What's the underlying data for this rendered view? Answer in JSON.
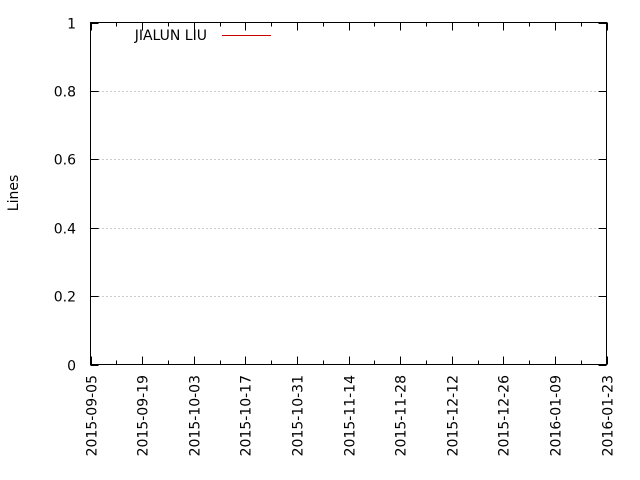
{
  "chart_data": {
    "type": "line",
    "title": "",
    "xlabel": "",
    "ylabel": "Lines",
    "x_type": "date",
    "xlim": [
      "2015-09-05",
      "2016-01-23"
    ],
    "ylim": [
      0,
      1
    ],
    "x_ticks": [
      "2015-09-05",
      "2015-09-19",
      "2015-10-03",
      "2015-10-17",
      "2015-10-31",
      "2015-11-14",
      "2015-11-28",
      "2015-12-12",
      "2015-12-26",
      "2016-01-09",
      "2016-01-23"
    ],
    "y_ticks": [
      0,
      0.2,
      0.4,
      0.6,
      0.8,
      1
    ],
    "y_tick_labels": [
      "0",
      "0.2",
      "0.4",
      "0.6",
      "0.8",
      "1"
    ],
    "grid": "horizontal dotted",
    "legend_position": "top-left",
    "series": [
      {
        "name": "JIALUN LIU",
        "color": "#cc0000",
        "points": []
      }
    ]
  }
}
